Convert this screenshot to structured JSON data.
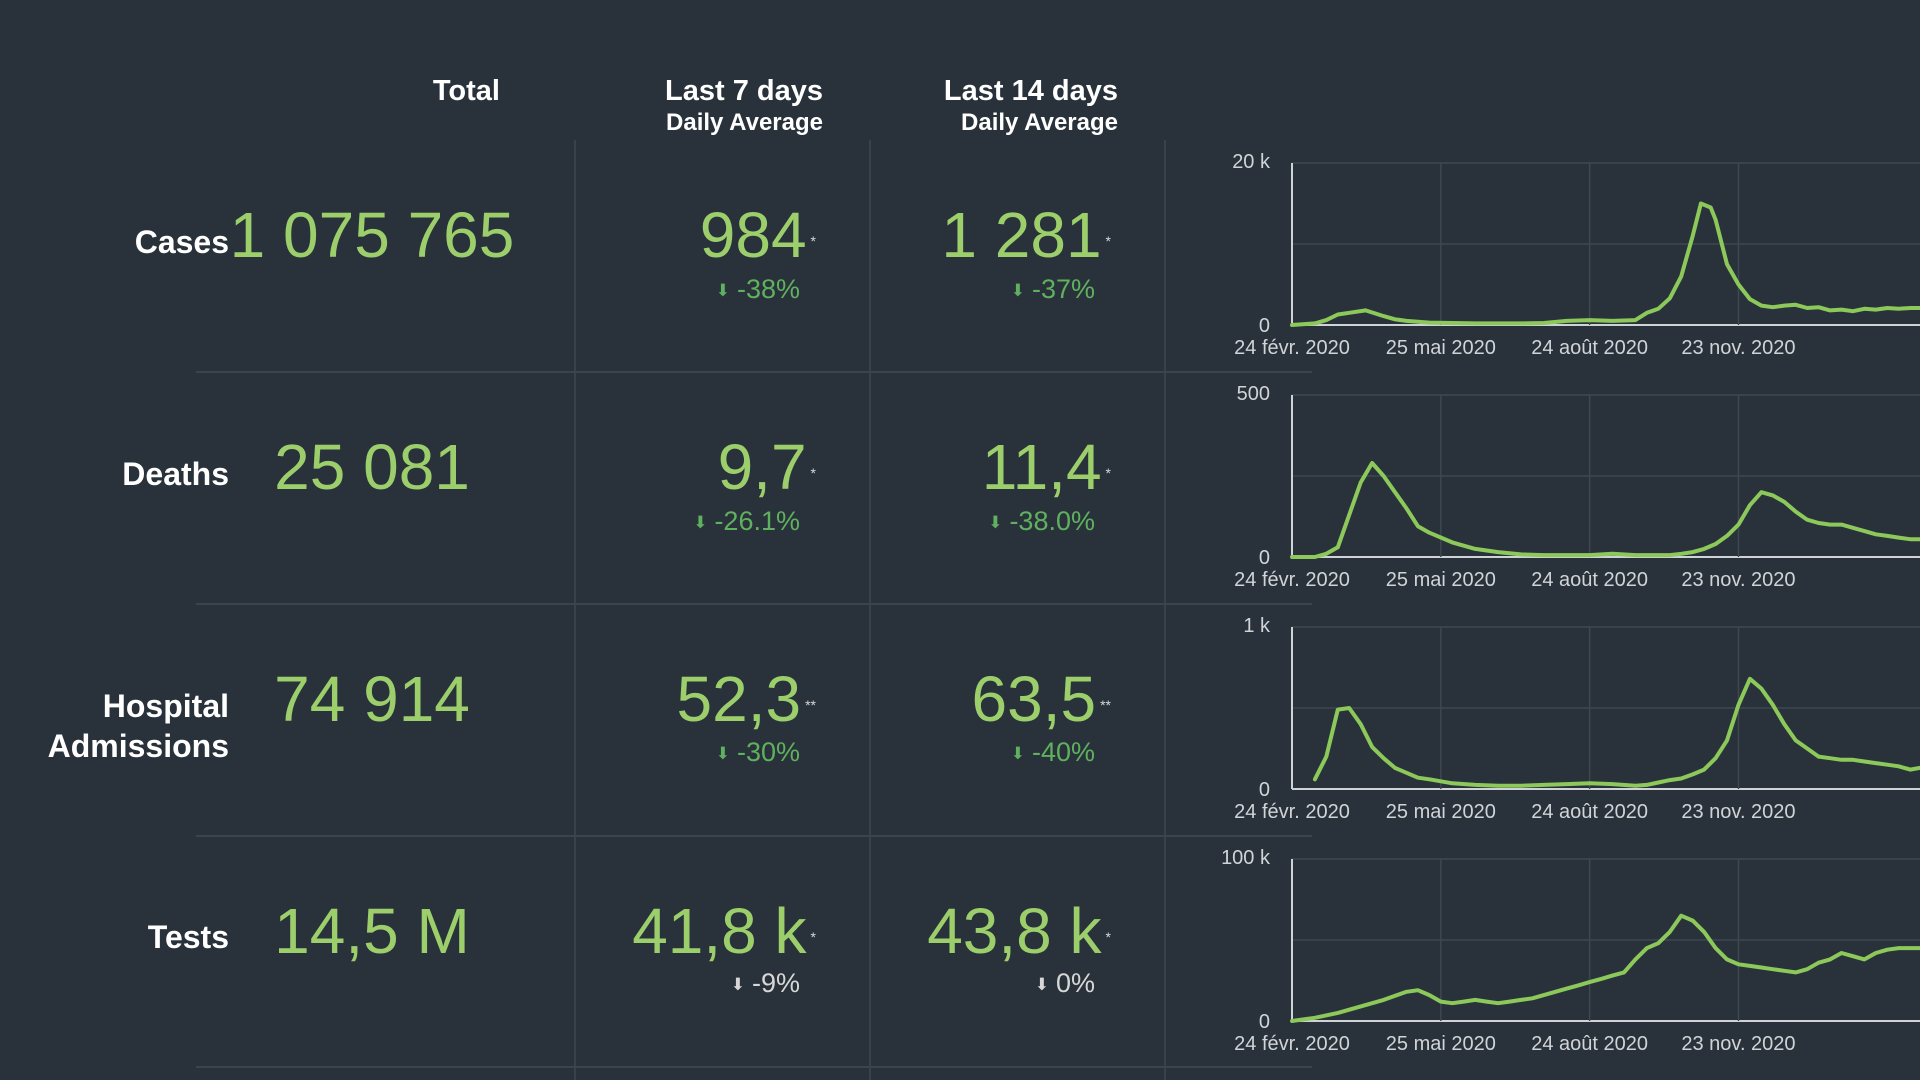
{
  "header": {
    "total": "Total",
    "last7": "Last 7 days",
    "last7_sub": "Daily Average",
    "last14": "Last 14 days",
    "last14_sub": "Daily Average"
  },
  "rows": [
    {
      "label_lines": [
        "Cases"
      ],
      "total": "1 075 765",
      "avg7": "984",
      "avg7_mark": "*",
      "chg7": "-38%",
      "chg7_color": "green",
      "avg14": "1 281",
      "avg14_mark": "*",
      "chg14": "-37%",
      "chg14_color": "green"
    },
    {
      "label_lines": [
        "Deaths"
      ],
      "total": "25 081",
      "avg7": "9,7",
      "avg7_mark": "*",
      "chg7": "-26.1%",
      "chg7_color": "green",
      "avg14": "11,4",
      "avg14_mark": "*",
      "chg14": "-38.0%",
      "chg14_color": "green"
    },
    {
      "label_lines": [
        "Hospital",
        "Admissions"
      ],
      "total": "74 914",
      "avg7": "52,3",
      "avg7_mark": "**",
      "chg7": "-30%",
      "chg7_color": "green",
      "avg14": "63,5",
      "avg14_mark": "**",
      "chg14": "-40%",
      "chg14_color": "green"
    },
    {
      "label_lines": [
        "Tests"
      ],
      "total": "14,5 M",
      "avg7": "41,8 k",
      "avg7_mark": "*",
      "chg7": "-9%",
      "chg7_color": "grey",
      "avg14": "43,8 k",
      "avg14_mark": "*",
      "chg14": "0%",
      "chg14_color": "grey"
    }
  ],
  "icons": {
    "change_arrow": "down-arrow-icon"
  },
  "colors": {
    "background": "#29323a",
    "value_green": "#9ccf6b",
    "change_green": "#5fb05f",
    "line_green": "#8cc95a",
    "grid": "#3e474f"
  },
  "chart_data": [
    {
      "type": "line",
      "title": "",
      "ylim": [
        0,
        20000
      ],
      "yticks": [
        "0",
        "20 k"
      ],
      "xlim": [
        0,
        384
      ],
      "xticks": [
        {
          "x": 0,
          "label": "24 févr. 2020"
        },
        {
          "x": 91,
          "label": "25 mai 2020"
        },
        {
          "x": 182,
          "label": "24 août 2020"
        },
        {
          "x": 273,
          "label": "23 nov. 2020"
        }
      ],
      "series": [
        {
          "x": [
            0,
            14,
            21,
            28,
            35,
            45,
            56,
            63,
            70,
            77,
            84,
            98,
            112,
            126,
            140,
            154,
            168,
            182,
            196,
            210,
            217,
            224,
            231,
            238,
            245,
            250,
            256,
            259,
            266,
            273,
            280,
            287,
            294,
            301,
            308,
            315,
            322,
            329,
            336,
            343,
            350,
            357,
            364,
            371,
            378,
            384
          ],
          "y": [
            0,
            200,
            600,
            1300,
            1500,
            1800,
            1100,
            700,
            500,
            400,
            300,
            250,
            200,
            200,
            200,
            250,
            500,
            600,
            500,
            600,
            1500,
            2000,
            3300,
            6000,
            11000,
            15000,
            14500,
            13000,
            7500,
            5000,
            3200,
            2400,
            2200,
            2400,
            2500,
            2100,
            2200,
            1800,
            1900,
            1700,
            2000,
            1900,
            2100,
            2000,
            2100,
            2100
          ]
        }
      ]
    },
    {
      "type": "line",
      "title": "",
      "ylim": [
        0,
        500
      ],
      "yticks": [
        "0",
        "500"
      ],
      "xlim": [
        0,
        384
      ],
      "xticks": [
        {
          "x": 0,
          "label": "24 févr. 2020"
        },
        {
          "x": 91,
          "label": "25 mai 2020"
        },
        {
          "x": 182,
          "label": "24 août 2020"
        },
        {
          "x": 273,
          "label": "23 nov. 2020"
        }
      ],
      "series": [
        {
          "x": [
            0,
            14,
            21,
            28,
            35,
            42,
            49,
            56,
            63,
            70,
            77,
            84,
            98,
            112,
            126,
            140,
            154,
            168,
            182,
            196,
            210,
            217,
            224,
            231,
            238,
            245,
            252,
            259,
            266,
            273,
            280,
            287,
            294,
            301,
            308,
            315,
            322,
            329,
            336,
            343,
            350,
            357,
            364,
            371,
            378,
            384
          ],
          "y": [
            0,
            0,
            10,
            30,
            130,
            230,
            290,
            250,
            200,
            150,
            95,
            75,
            45,
            25,
            15,
            8,
            6,
            6,
            6,
            10,
            6,
            6,
            6,
            6,
            10,
            15,
            25,
            40,
            65,
            100,
            160,
            200,
            190,
            170,
            140,
            115,
            105,
            100,
            100,
            90,
            80,
            70,
            65,
            60,
            55,
            55
          ]
        }
      ]
    },
    {
      "type": "line",
      "title": "",
      "ylim": [
        0,
        1000
      ],
      "yticks": [
        "0",
        "1 k"
      ],
      "xlim": [
        0,
        384
      ],
      "xticks": [
        {
          "x": 0,
          "label": "24 févr. 2020"
        },
        {
          "x": 91,
          "label": "25 mai 2020"
        },
        {
          "x": 182,
          "label": "24 août 2020"
        },
        {
          "x": 273,
          "label": "23 nov. 2020"
        }
      ],
      "series": [
        {
          "x": [
            14,
            21,
            28,
            35,
            42,
            49,
            56,
            63,
            70,
            77,
            84,
            98,
            112,
            126,
            140,
            154,
            168,
            182,
            196,
            210,
            217,
            224,
            231,
            238,
            245,
            252,
            259,
            266,
            273,
            280,
            287,
            294,
            301,
            308,
            315,
            322,
            329,
            336,
            343,
            350,
            357,
            364,
            371,
            378,
            384
          ],
          "y": [
            60,
            200,
            490,
            500,
            400,
            260,
            190,
            130,
            100,
            70,
            60,
            35,
            25,
            20,
            20,
            25,
            30,
            35,
            30,
            20,
            25,
            40,
            55,
            65,
            90,
            120,
            190,
            300,
            520,
            680,
            620,
            520,
            400,
            300,
            250,
            200,
            190,
            180,
            180,
            170,
            160,
            150,
            140,
            120,
            130
          ]
        }
      ]
    },
    {
      "type": "line",
      "title": "",
      "ylim": [
        0,
        100000
      ],
      "yticks": [
        "0",
        "100 k"
      ],
      "xlim": [
        0,
        384
      ],
      "xticks": [
        {
          "x": 0,
          "label": "24 févr. 2020"
        },
        {
          "x": 91,
          "label": "25 mai 2020"
        },
        {
          "x": 182,
          "label": "24 août 2020"
        },
        {
          "x": 273,
          "label": "23 nov. 2020"
        }
      ],
      "series": [
        {
          "x": [
            0,
            14,
            28,
            42,
            56,
            70,
            77,
            84,
            91,
            98,
            105,
            112,
            119,
            126,
            133,
            140,
            147,
            154,
            161,
            168,
            175,
            182,
            189,
            196,
            203,
            210,
            217,
            224,
            231,
            238,
            245,
            252,
            259,
            266,
            273,
            280,
            287,
            294,
            301,
            308,
            315,
            322,
            329,
            336,
            343,
            350,
            357,
            364,
            371,
            378,
            384
          ],
          "y": [
            0,
            2000,
            5000,
            9000,
            13000,
            18000,
            19000,
            16000,
            12000,
            11000,
            12000,
            13000,
            12000,
            11000,
            12000,
            13000,
            14000,
            16000,
            18000,
            20000,
            22000,
            24000,
            26000,
            28000,
            30000,
            38000,
            45000,
            48000,
            55000,
            65000,
            62000,
            55000,
            45000,
            38000,
            35000,
            34000,
            33000,
            32000,
            31000,
            30000,
            32000,
            36000,
            38000,
            42000,
            40000,
            38000,
            42000,
            44000,
            45000,
            45000,
            45000
          ]
        }
      ]
    }
  ]
}
